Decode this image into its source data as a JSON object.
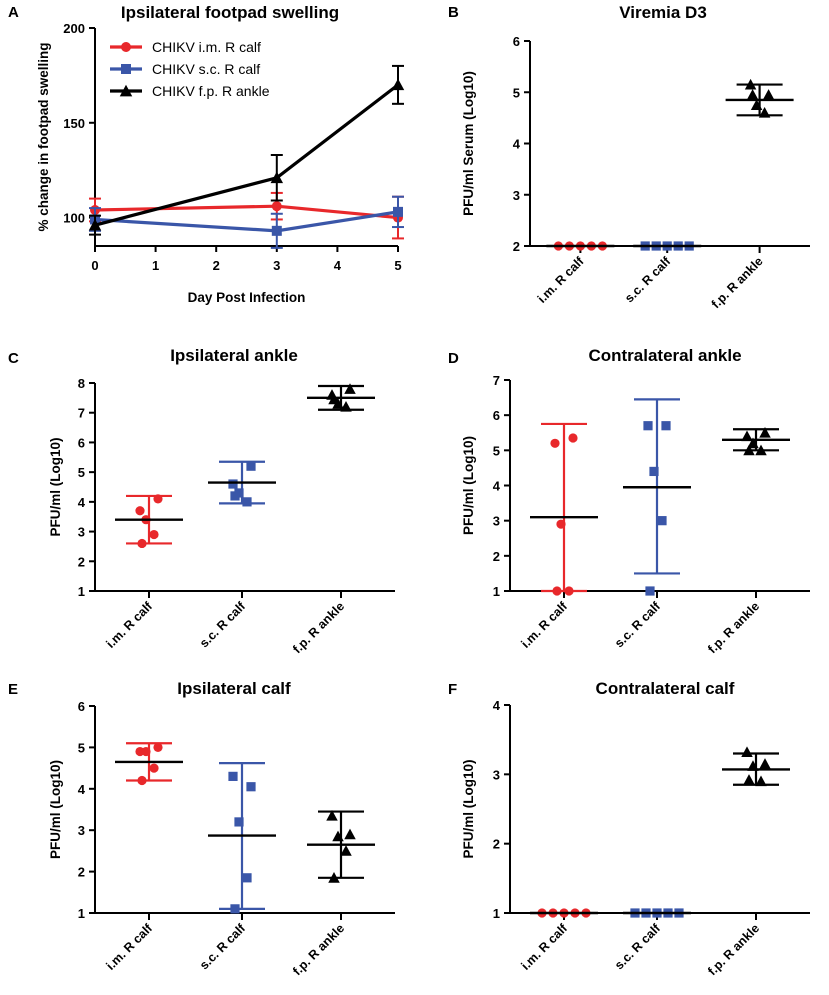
{
  "figure": {
    "colors": {
      "im": "#e8282b",
      "sc": "#3a56a8",
      "fp": "#000000"
    },
    "categories": [
      "i.m. R calf",
      "s.c. R calf",
      "f.p. R ankle"
    ]
  },
  "chart_data": [
    {
      "panel": "A",
      "type": "line",
      "title": "Ipsilateral footpad swelling",
      "xlabel": "Day Post Infection",
      "ylabel": "% change in footpad swelling",
      "x": [
        0,
        3,
        5
      ],
      "xlim": [
        0,
        5
      ],
      "xticks": [
        0,
        1,
        2,
        3,
        4,
        5
      ],
      "ylim": [
        85,
        200
      ],
      "yticks": [
        100,
        150,
        200
      ],
      "legend_position": "top-left",
      "series": [
        {
          "name": "CHIKV i.m. R calf",
          "color": "#e8282b",
          "marker": "circle",
          "values": [
            104,
            106,
            100
          ],
          "err_low": [
            98,
            99,
            89
          ],
          "err_high": [
            110,
            113,
            111
          ]
        },
        {
          "name": "CHIKV s.c. R calf",
          "color": "#3a56a8",
          "marker": "square",
          "values": [
            99,
            93,
            103
          ],
          "err_low": [
            93,
            84,
            95
          ],
          "err_high": [
            105,
            102,
            111
          ]
        },
        {
          "name": "CHIKV f.p. R ankle",
          "color": "#000000",
          "marker": "triangle",
          "values": [
            96,
            121,
            170
          ],
          "err_low": [
            91,
            109,
            160
          ],
          "err_high": [
            101,
            133,
            180
          ]
        }
      ]
    },
    {
      "panel": "B",
      "type": "scatter",
      "title": "Viremia D3",
      "ylabel": "PFU/ml Serum (Log10)",
      "ylim": [
        2,
        6
      ],
      "yticks": [
        2,
        3,
        4,
        5,
        6
      ],
      "categories": [
        "i.m. R calf",
        "s.c. R calf",
        "f.p. R ankle"
      ],
      "series": [
        {
          "name": "i.m. R calf",
          "color": "#e8282b",
          "marker": "circle",
          "points": [
            2,
            2,
            2,
            2,
            2
          ],
          "mean": 2,
          "sd_low": 2,
          "sd_high": 2
        },
        {
          "name": "s.c. R calf",
          "color": "#3a56a8",
          "marker": "square",
          "points": [
            2,
            2,
            2,
            2,
            2
          ],
          "mean": 2,
          "sd_low": 2,
          "sd_high": 2
        },
        {
          "name": "f.p. R ankle",
          "color": "#000000",
          "marker": "triangle",
          "points": [
            5.15,
            4.95,
            4.75,
            4.6,
            4.95
          ],
          "mean": 4.85,
          "sd_low": 4.55,
          "sd_high": 5.15
        }
      ]
    },
    {
      "panel": "C",
      "type": "scatter",
      "title": "Ipsilateral ankle",
      "ylabel": "PFU/ml (Log10)",
      "ylim": [
        1,
        8
      ],
      "yticks": [
        1,
        2,
        3,
        4,
        5,
        6,
        7,
        8
      ],
      "categories": [
        "i.m. R calf",
        "s.c. R calf",
        "f.p. R ankle"
      ],
      "series": [
        {
          "name": "i.m. R calf",
          "color": "#e8282b",
          "marker": "circle",
          "points": [
            3.7,
            4.1,
            3.4,
            2.9,
            2.6
          ],
          "mean": 3.4,
          "sd_low": 2.6,
          "sd_high": 4.2
        },
        {
          "name": "s.c. R calf",
          "color": "#3a56a8",
          "marker": "square",
          "points": [
            4.6,
            5.2,
            4.3,
            4.0,
            4.2
          ],
          "mean": 4.65,
          "sd_low": 3.95,
          "sd_high": 5.35
        },
        {
          "name": "f.p. R ankle",
          "color": "#000000",
          "marker": "triangle",
          "points": [
            7.6,
            7.8,
            7.3,
            7.2,
            7.45
          ],
          "mean": 7.5,
          "sd_low": 7.1,
          "sd_high": 7.9
        }
      ]
    },
    {
      "panel": "D",
      "type": "scatter",
      "title": "Contralateral ankle",
      "ylabel": "PFU/ml (Log10)",
      "ylim": [
        1,
        7
      ],
      "yticks": [
        1,
        2,
        3,
        4,
        5,
        6,
        7
      ],
      "categories": [
        "i.m. R calf",
        "s.c. R calf",
        "f.p. R ankle"
      ],
      "series": [
        {
          "name": "i.m. R calf",
          "color": "#e8282b",
          "marker": "circle",
          "points": [
            5.2,
            5.35,
            2.9,
            1.0,
            1.0
          ],
          "mean": 3.1,
          "sd_low": 1.0,
          "sd_high": 5.75
        },
        {
          "name": "s.c. R calf",
          "color": "#3a56a8",
          "marker": "square",
          "points": [
            5.7,
            5.7,
            4.4,
            3.0,
            1.0
          ],
          "mean": 3.95,
          "sd_low": 1.5,
          "sd_high": 6.45
        },
        {
          "name": "f.p. R ankle",
          "color": "#000000",
          "marker": "triangle",
          "points": [
            5.4,
            5.5,
            5.2,
            5.0,
            5.0
          ],
          "mean": 5.3,
          "sd_low": 5.0,
          "sd_high": 5.6
        }
      ]
    },
    {
      "panel": "E",
      "type": "scatter",
      "title": "Ipsilateral calf",
      "ylabel": "PFU/ml (Log10)",
      "ylim": [
        1,
        6
      ],
      "yticks": [
        1,
        2,
        3,
        4,
        5,
        6
      ],
      "categories": [
        "i.m. R calf",
        "s.c. R calf",
        "f.p. R ankle"
      ],
      "series": [
        {
          "name": "i.m. R calf",
          "color": "#e8282b",
          "marker": "circle",
          "points": [
            4.9,
            5.0,
            4.9,
            4.5,
            4.2
          ],
          "mean": 4.65,
          "sd_low": 4.2,
          "sd_high": 5.1
        },
        {
          "name": "s.c. R calf",
          "color": "#3a56a8",
          "marker": "square",
          "points": [
            4.3,
            4.05,
            3.2,
            1.85,
            1.1
          ],
          "mean": 2.87,
          "sd_low": 1.1,
          "sd_high": 4.62
        },
        {
          "name": "f.p. R ankle",
          "color": "#000000",
          "marker": "triangle",
          "points": [
            3.35,
            2.9,
            2.85,
            2.5,
            1.85
          ],
          "mean": 2.65,
          "sd_low": 1.85,
          "sd_high": 3.45
        }
      ]
    },
    {
      "panel": "F",
      "type": "scatter",
      "title": "Contralateral calf",
      "ylabel": "PFU/ml (Log10)",
      "ylim": [
        1,
        4
      ],
      "yticks": [
        1,
        2,
        3,
        4
      ],
      "categories": [
        "i.m. R calf",
        "s.c. R calf",
        "f.p. R ankle"
      ],
      "series": [
        {
          "name": "i.m. R calf",
          "color": "#e8282b",
          "marker": "circle",
          "points": [
            1,
            1,
            1,
            1,
            1
          ],
          "mean": 1,
          "sd_low": 1,
          "sd_high": 1
        },
        {
          "name": "s.c. R calf",
          "color": "#3a56a8",
          "marker": "square",
          "points": [
            1,
            1,
            1,
            1,
            1
          ],
          "mean": 1,
          "sd_low": 1,
          "sd_high": 1
        },
        {
          "name": "f.p. R ankle",
          "color": "#000000",
          "marker": "triangle",
          "points": [
            3.32,
            3.15,
            3.12,
            2.9,
            2.92
          ],
          "mean": 3.07,
          "sd_low": 2.85,
          "sd_high": 3.3
        }
      ]
    }
  ]
}
